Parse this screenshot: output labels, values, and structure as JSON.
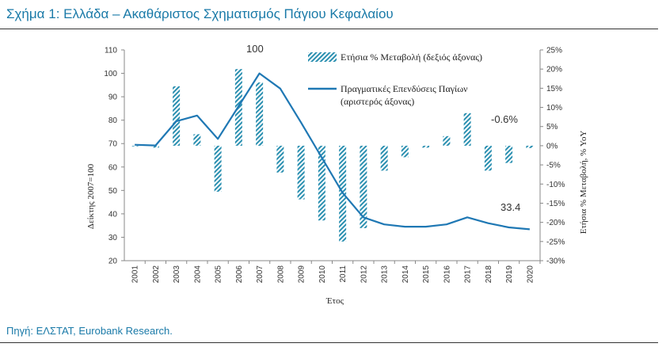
{
  "header": {
    "title": "Σχήμα 1: Ελλάδα – Ακαθάριστος Σχηματισμός Πάγιου Κεφαλαίου"
  },
  "footer": {
    "source": "Πηγή: ΕΛΣΤΑΤ, Eurobank Research."
  },
  "colors": {
    "accent": "#1a7aa8",
    "line": "#1f78b4",
    "bars": "#2a8fb0"
  },
  "chart_data": {
    "type": "bar+line",
    "categories": [
      "2001",
      "2002",
      "2003",
      "2004",
      "2005",
      "2006",
      "2007",
      "2008",
      "2009",
      "2010",
      "2011",
      "2012",
      "2013",
      "2014",
      "2015",
      "2016",
      "2017",
      "2018",
      "2019",
      "2020"
    ],
    "series": [
      {
        "name": "Ετήσια % Μεταβολή (δεξιός άξονας)",
        "type": "bar",
        "axis": "right",
        "values": [
          0.0,
          -0.5,
          15.5,
          3.0,
          -12.0,
          20.0,
          16.5,
          -7.0,
          -14.0,
          -19.5,
          -25.0,
          -21.5,
          -6.5,
          -3.0,
          -0.5,
          2.5,
          8.5,
          -6.5,
          -4.5,
          -0.6
        ]
      },
      {
        "name_line1": "Πραγματικές Επενδύσεις Παγίων",
        "name_line2": "(αριστερός άξονας)",
        "type": "line",
        "axis": "left",
        "values": [
          69.5,
          69.2,
          79.5,
          82.0,
          72.0,
          86.0,
          100.0,
          93.5,
          79.0,
          64.0,
          49.0,
          38.5,
          35.5,
          34.5,
          34.5,
          35.5,
          38.5,
          36.0,
          34.2,
          33.4
        ]
      }
    ],
    "left_axis": {
      "label": "Δείκτης 2007=100",
      "min": 20,
      "max": 110,
      "ticks": [
        "20",
        "30",
        "40",
        "50",
        "60",
        "70",
        "80",
        "90",
        "100",
        "110"
      ]
    },
    "right_axis": {
      "label": "Ετήσια % Μεταβολή, % YoY",
      "min": -30,
      "max": 25,
      "ticks": [
        "-30%",
        "-25%",
        "-20%",
        "-15%",
        "-10%",
        "-5%",
        "0%",
        "5%",
        "10%",
        "15%",
        "20%",
        "25%"
      ]
    },
    "xlabel": "Έτος",
    "annotations": {
      "peak": "100",
      "last_change": "-0.6%",
      "last_level": "33.4"
    },
    "grid": false,
    "legend_position": "top-right"
  }
}
